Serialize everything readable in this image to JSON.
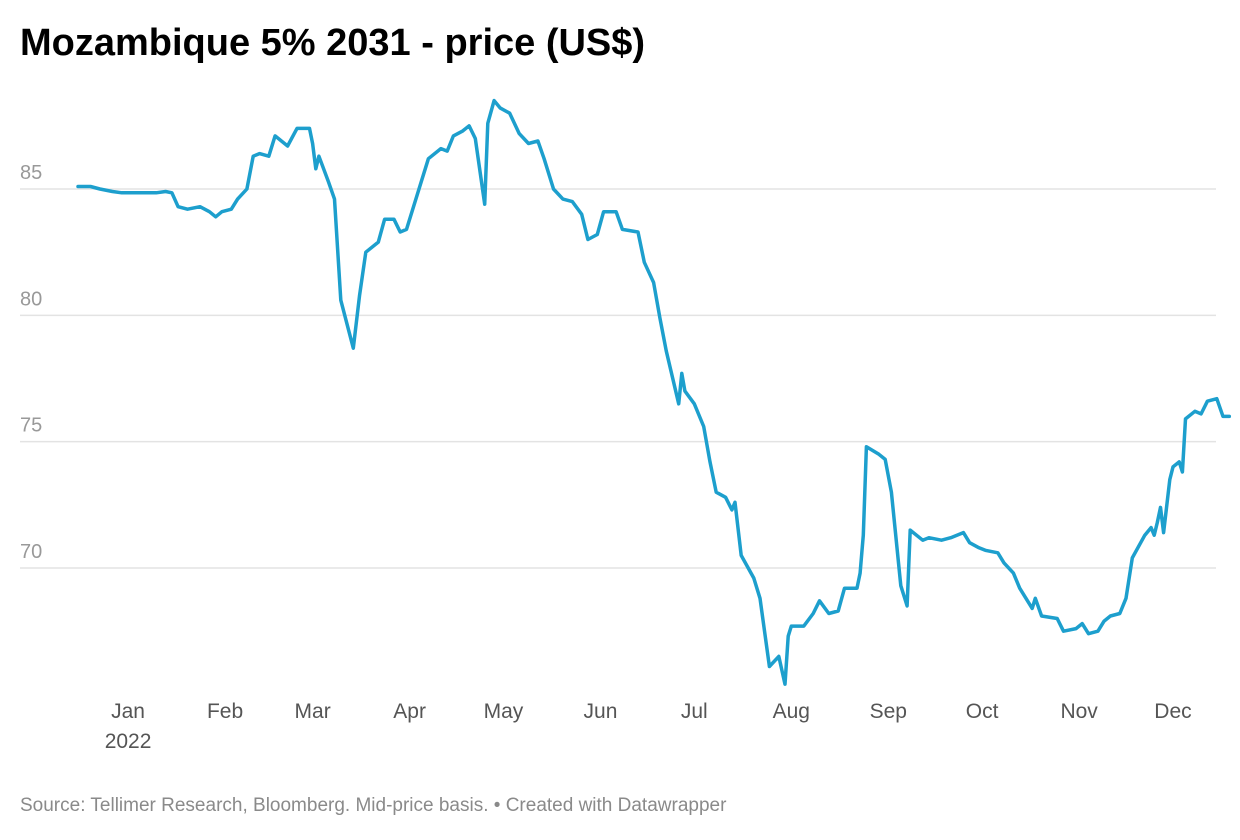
{
  "chart_data": {
    "type": "line",
    "title": "Mozambique 5% 2031 - price (US$)",
    "xlabel": "",
    "ylabel": "",
    "ylim": [
      65,
      88
    ],
    "yticks": [
      70,
      75,
      80,
      85
    ],
    "grid": true,
    "x_start_date": "2021-12-16",
    "x_end_date": "2022-12-09",
    "xticks": [
      {
        "date": "2022-01-01",
        "label": "Jan",
        "sublabel": "2022"
      },
      {
        "date": "2022-02-01",
        "label": "Feb",
        "sublabel": ""
      },
      {
        "date": "2022-03-01",
        "label": "Mar",
        "sublabel": ""
      },
      {
        "date": "2022-04-01",
        "label": "Apr",
        "sublabel": ""
      },
      {
        "date": "2022-05-01",
        "label": "May",
        "sublabel": ""
      },
      {
        "date": "2022-06-01",
        "label": "Jun",
        "sublabel": ""
      },
      {
        "date": "2022-07-01",
        "label": "Jul",
        "sublabel": ""
      },
      {
        "date": "2022-08-01",
        "label": "Aug",
        "sublabel": ""
      },
      {
        "date": "2022-09-01",
        "label": "Sep",
        "sublabel": ""
      },
      {
        "date": "2022-10-01",
        "label": "Oct",
        "sublabel": ""
      },
      {
        "date": "2022-11-01",
        "label": "Nov",
        "sublabel": ""
      },
      {
        "date": "2022-12-01",
        "label": "Dec",
        "sublabel": ""
      }
    ],
    "series": [
      {
        "color": "#1d9fcd",
        "points": [
          [
            "2021-12-16",
            85.1
          ],
          [
            "2021-12-20",
            85.1
          ],
          [
            "2021-12-23",
            85.0
          ],
          [
            "2021-12-27",
            84.9
          ],
          [
            "2021-12-30",
            84.85
          ],
          [
            "2022-01-03",
            84.85
          ],
          [
            "2022-01-06",
            84.85
          ],
          [
            "2022-01-10",
            84.85
          ],
          [
            "2022-01-13",
            84.9
          ],
          [
            "2022-01-15",
            84.85
          ],
          [
            "2022-01-17",
            84.3
          ],
          [
            "2022-01-20",
            84.2
          ],
          [
            "2022-01-24",
            84.3
          ],
          [
            "2022-01-27",
            84.1
          ],
          [
            "2022-01-29",
            83.9
          ],
          [
            "2022-01-31",
            84.1
          ],
          [
            "2022-02-03",
            84.2
          ],
          [
            "2022-02-05",
            84.6
          ],
          [
            "2022-02-08",
            85.0
          ],
          [
            "2022-02-10",
            86.3
          ],
          [
            "2022-02-12",
            86.4
          ],
          [
            "2022-02-15",
            86.3
          ],
          [
            "2022-02-17",
            87.1
          ],
          [
            "2022-02-21",
            86.7
          ],
          [
            "2022-02-24",
            87.4
          ],
          [
            "2022-02-28",
            87.4
          ],
          [
            "2022-03-01",
            86.8
          ],
          [
            "2022-03-02",
            85.8
          ],
          [
            "2022-03-03",
            86.3
          ],
          [
            "2022-03-06",
            85.3
          ],
          [
            "2022-03-08",
            84.6
          ],
          [
            "2022-03-10",
            80.6
          ],
          [
            "2022-03-14",
            78.7
          ],
          [
            "2022-03-16",
            80.8
          ],
          [
            "2022-03-18",
            82.5
          ],
          [
            "2022-03-22",
            82.9
          ],
          [
            "2022-03-24",
            83.8
          ],
          [
            "2022-03-27",
            83.8
          ],
          [
            "2022-03-29",
            83.3
          ],
          [
            "2022-03-31",
            83.4
          ],
          [
            "2022-04-04",
            85.0
          ],
          [
            "2022-04-07",
            86.2
          ],
          [
            "2022-04-11",
            86.6
          ],
          [
            "2022-04-13",
            86.5
          ],
          [
            "2022-04-15",
            87.1
          ],
          [
            "2022-04-18",
            87.3
          ],
          [
            "2022-04-20",
            87.5
          ],
          [
            "2022-04-22",
            87.0
          ],
          [
            "2022-04-25",
            84.4
          ],
          [
            "2022-04-26",
            87.6
          ],
          [
            "2022-04-28",
            88.5
          ],
          [
            "2022-04-30",
            88.2
          ],
          [
            "2022-05-03",
            88.0
          ],
          [
            "2022-05-06",
            87.2
          ],
          [
            "2022-05-09",
            86.8
          ],
          [
            "2022-05-12",
            86.9
          ],
          [
            "2022-05-14",
            86.2
          ],
          [
            "2022-05-17",
            85.0
          ],
          [
            "2022-05-20",
            84.6
          ],
          [
            "2022-05-23",
            84.5
          ],
          [
            "2022-05-26",
            84.0
          ],
          [
            "2022-05-28",
            83.0
          ],
          [
            "2022-05-31",
            83.2
          ],
          [
            "2022-06-02",
            84.1
          ],
          [
            "2022-06-06",
            84.1
          ],
          [
            "2022-06-08",
            83.4
          ],
          [
            "2022-06-13",
            83.3
          ],
          [
            "2022-06-15",
            82.1
          ],
          [
            "2022-06-18",
            81.3
          ],
          [
            "2022-06-20",
            79.9
          ],
          [
            "2022-06-22",
            78.6
          ],
          [
            "2022-06-26",
            76.5
          ],
          [
            "2022-06-27",
            77.7
          ],
          [
            "2022-06-28",
            77.0
          ],
          [
            "2022-07-01",
            76.5
          ],
          [
            "2022-07-04",
            75.6
          ],
          [
            "2022-07-06",
            74.2
          ],
          [
            "2022-07-08",
            73.0
          ],
          [
            "2022-07-11",
            72.8
          ],
          [
            "2022-07-13",
            72.3
          ],
          [
            "2022-07-14",
            72.6
          ],
          [
            "2022-07-16",
            70.5
          ],
          [
            "2022-07-20",
            69.6
          ],
          [
            "2022-07-22",
            68.8
          ],
          [
            "2022-07-25",
            66.1
          ],
          [
            "2022-07-28",
            66.5
          ],
          [
            "2022-07-30",
            65.4
          ],
          [
            "2022-07-31",
            67.3
          ],
          [
            "2022-08-01",
            67.7
          ],
          [
            "2022-08-05",
            67.7
          ],
          [
            "2022-08-08",
            68.2
          ],
          [
            "2022-08-10",
            68.7
          ],
          [
            "2022-08-13",
            68.2
          ],
          [
            "2022-08-16",
            68.3
          ],
          [
            "2022-08-18",
            69.2
          ],
          [
            "2022-08-22",
            69.2
          ],
          [
            "2022-08-23",
            69.8
          ],
          [
            "2022-08-24",
            71.3
          ],
          [
            "2022-08-25",
            74.8
          ],
          [
            "2022-08-29",
            74.5
          ],
          [
            "2022-08-31",
            74.3
          ],
          [
            "2022-09-02",
            73.0
          ],
          [
            "2022-09-05",
            69.3
          ],
          [
            "2022-09-07",
            68.5
          ],
          [
            "2022-09-08",
            71.5
          ],
          [
            "2022-09-12",
            71.1
          ],
          [
            "2022-09-14",
            71.2
          ],
          [
            "2022-09-18",
            71.1
          ],
          [
            "2022-09-21",
            71.2
          ],
          [
            "2022-09-25",
            71.4
          ],
          [
            "2022-09-27",
            71.0
          ],
          [
            "2022-09-30",
            70.8
          ],
          [
            "2022-10-02",
            70.7
          ],
          [
            "2022-10-06",
            70.6
          ],
          [
            "2022-10-08",
            70.2
          ],
          [
            "2022-10-11",
            69.8
          ],
          [
            "2022-10-13",
            69.2
          ],
          [
            "2022-10-17",
            68.4
          ],
          [
            "2022-10-18",
            68.8
          ],
          [
            "2022-10-20",
            68.1
          ],
          [
            "2022-10-25",
            68.0
          ],
          [
            "2022-10-27",
            67.5
          ],
          [
            "2022-10-31",
            67.6
          ],
          [
            "2022-11-02",
            67.8
          ],
          [
            "2022-11-04",
            67.4
          ],
          [
            "2022-11-07",
            67.5
          ],
          [
            "2022-11-09",
            67.9
          ],
          [
            "2022-11-11",
            68.1
          ],
          [
            "2022-11-14",
            68.2
          ],
          [
            "2022-11-16",
            68.8
          ],
          [
            "2022-11-18",
            70.4
          ],
          [
            "2022-11-22",
            71.3
          ],
          [
            "2022-11-24",
            71.6
          ],
          [
            "2022-11-25",
            71.3
          ],
          [
            "2022-11-26",
            71.8
          ],
          [
            "2022-11-27",
            72.4
          ],
          [
            "2022-11-28",
            71.4
          ],
          [
            "2022-11-30",
            73.5
          ],
          [
            "2022-12-01",
            74.0
          ],
          [
            "2022-12-03",
            74.2
          ],
          [
            "2022-12-04",
            73.8
          ],
          [
            "2022-12-05",
            75.9
          ],
          [
            "2022-12-08",
            76.2
          ],
          [
            "2022-12-10",
            76.1
          ],
          [
            "2022-12-12",
            76.6
          ],
          [
            "2022-12-15",
            76.7
          ],
          [
            "2022-12-17",
            76.0
          ],
          [
            "2022-12-19",
            76.0
          ]
        ]
      }
    ]
  },
  "footer": {
    "source": "Source: Tellimer Research, Bloomberg. Mid-price basis. • Created with Datawrapper"
  }
}
